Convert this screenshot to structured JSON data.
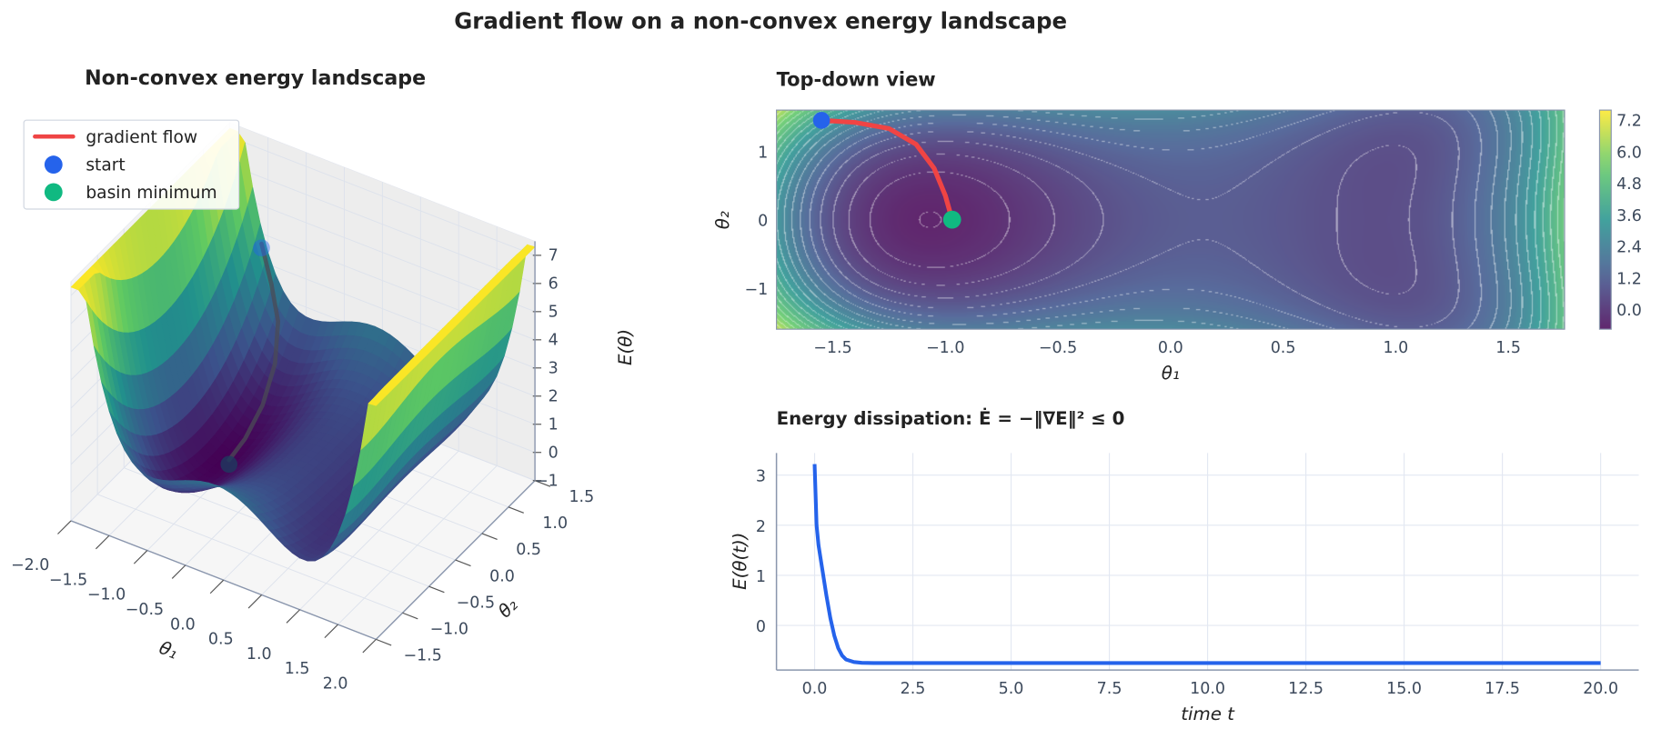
{
  "title": "Gradient flow on a non-convex energy landscape",
  "colors": {
    "flow": "#ef4444",
    "start": "#2563eb",
    "minimum": "#10b981",
    "energy_line": "#2563eb",
    "colormap": "viridis"
  },
  "legend": {
    "items": [
      {
        "label": "gradient flow",
        "symbol": "line",
        "color": "#ef4444"
      },
      {
        "label": "start",
        "symbol": "dot",
        "color": "#2563eb"
      },
      {
        "label": "basin minimum",
        "symbol": "dot",
        "color": "#10b981"
      }
    ],
    "placement": "top-left"
  },
  "chart_data": [
    {
      "type": "surface3d",
      "title": "Non-convex energy landscape",
      "xlabel": "θ₁",
      "ylabel": "θ₂",
      "zlabel": "E(θ)",
      "xlim": [
        -2.0,
        2.0
      ],
      "ylim": [
        -1.5,
        1.5
      ],
      "zlim": [
        -1,
        7.5
      ],
      "xticks": [
        "−2.0",
        "−1.5",
        "−1.0",
        "−0.5",
        "0.0",
        "0.5",
        "1.0",
        "1.5",
        "2.0"
      ],
      "yticks": [
        "−1.5",
        "−1.0",
        "−0.5",
        "0.0",
        "0.5",
        "1.0",
        "1.5"
      ],
      "zticks": [
        "−1",
        "0",
        "1",
        "2",
        "3",
        "4",
        "5",
        "6",
        "7"
      ],
      "colormap": "viridis",
      "start": [
        -1.55,
        1.45
      ],
      "minimum": [
        -0.97,
        0.0
      ]
    },
    {
      "type": "contour",
      "title": "Top-down view",
      "xlabel": "θ₁",
      "ylabel": "θ₂",
      "xlim": [
        -1.75,
        1.75
      ],
      "ylim": [
        -1.6,
        1.6
      ],
      "xticks": [
        "−1.5",
        "−1.0",
        "−0.5",
        "0.0",
        "0.5",
        "1.0",
        "1.5"
      ],
      "yticks": [
        "−1",
        "0",
        "1"
      ],
      "colorbar": {
        "ticks": [
          "0.0",
          "1.2",
          "2.4",
          "3.6",
          "4.8",
          "6.0",
          "7.2"
        ],
        "range": [
          -0.76,
          7.56
        ]
      },
      "trajectory": {
        "theta1": [
          -1.55,
          -1.4,
          -1.25,
          -1.13,
          -1.05,
          -1.0,
          -0.97
        ],
        "theta2": [
          1.45,
          1.42,
          1.33,
          1.1,
          0.75,
          0.35,
          0.0
        ]
      },
      "start": [
        -1.55,
        1.45
      ],
      "minimum": [
        -0.97,
        0.0
      ]
    },
    {
      "type": "line",
      "title": "Energy dissipation: Ė = −‖∇E‖² ≤ 0",
      "xlabel": "time t",
      "ylabel": "E(θ(t))",
      "xlim": [
        -0.97,
        20.97
      ],
      "ylim": [
        -0.89,
        3.44
      ],
      "xticks": [
        "0.0",
        "2.5",
        "5.0",
        "7.5",
        "10.0",
        "12.5",
        "15.0",
        "17.5",
        "20.0"
      ],
      "yticks": [
        "0",
        "1",
        "2",
        "3"
      ],
      "grid": true,
      "x": [
        0,
        0.05,
        0.1,
        0.15,
        0.2,
        0.3,
        0.4,
        0.5,
        0.6,
        0.7,
        0.8,
        1.0,
        1.2,
        1.5,
        2,
        20
      ],
      "y": [
        3.22,
        2.0,
        1.6,
        1.35,
        1.1,
        0.6,
        0.15,
        -0.2,
        -0.45,
        -0.6,
        -0.68,
        -0.73,
        -0.745,
        -0.75,
        -0.75,
        -0.75
      ]
    }
  ]
}
